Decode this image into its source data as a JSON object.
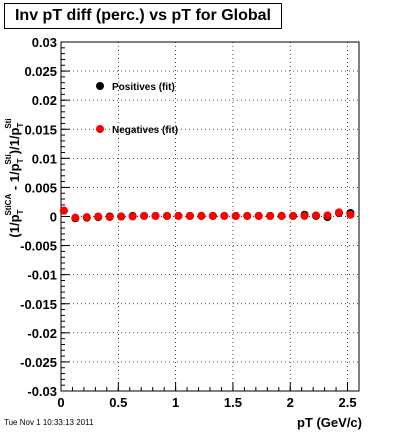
{
  "title": "Inv pT diff (perc.) vs pT for Global",
  "timestamp": "Tue Nov  1 10:33:13 2011",
  "chart_data": {
    "type": "scatter",
    "title": "Inv pT diff (perc.) vs pT for Global",
    "xlabel": "pT (GeV/c)",
    "ylabel": "(1/p_T^StiCA - 1/p_T^Sti)/1/p_T^Sti",
    "ylabel_parts": {
      "open": "(1/p",
      "sub_T": "T",
      "sup1": "StiCA",
      "mid": " - 1/p",
      "sup2": "Sti",
      "close": ")/1/p",
      "sup3": "Sti"
    },
    "xlim": [
      0,
      2.6
    ],
    "ylim": [
      -0.03,
      0.03
    ],
    "x_ticks": [
      "0",
      "0.5",
      "1",
      "1.5",
      "2",
      "2.5"
    ],
    "x_tick_values": [
      0,
      0.5,
      1,
      1.5,
      2,
      2.5
    ],
    "y_ticks": [
      "-0.03",
      "-0.025",
      "-0.02",
      "-0.015",
      "-0.01",
      "-0.005",
      "0",
      "0.005",
      "0.01",
      "0.015",
      "0.02",
      "0.025",
      "0.03"
    ],
    "y_tick_values": [
      -0.03,
      -0.025,
      -0.02,
      -0.015,
      -0.01,
      -0.005,
      0,
      0.005,
      0.01,
      0.015,
      0.02,
      0.025,
      0.03
    ],
    "grid": true,
    "legend_position": "top-left",
    "series": [
      {
        "name": "Positives (fit)",
        "color": "#000000",
        "x": [
          0.025,
          0.125,
          0.225,
          0.325,
          0.425,
          0.525,
          0.625,
          0.725,
          0.825,
          0.925,
          1.025,
          1.125,
          1.225,
          1.325,
          1.425,
          1.525,
          1.625,
          1.725,
          1.825,
          1.925,
          2.025,
          2.125,
          2.225,
          2.325,
          2.425,
          2.525
        ],
        "y": [
          0.001,
          -0.0003,
          -0.0002,
          -0.0001,
          0.0,
          0.0,
          0.0001,
          0.0001,
          0.0001,
          0.0001,
          0.0001,
          0.0001,
          0.0001,
          0.0001,
          0.0001,
          0.0001,
          0.0001,
          0.0001,
          0.0001,
          0.0001,
          0.0001,
          0.0003,
          0.0001,
          -0.0001,
          0.0006,
          0.0006
        ]
      },
      {
        "name": "Negatives (fit)",
        "color": "#ff0000",
        "x": [
          0.025,
          0.125,
          0.225,
          0.325,
          0.425,
          0.525,
          0.625,
          0.725,
          0.825,
          0.925,
          1.025,
          1.125,
          1.225,
          1.325,
          1.425,
          1.525,
          1.625,
          1.725,
          1.825,
          1.925,
          2.025,
          2.125,
          2.225,
          2.325,
          2.425,
          2.525
        ],
        "y": [
          0.001,
          -0.0002,
          -0.0001,
          0.0,
          -0.0001,
          0.0,
          0.0,
          0.0001,
          0.0001,
          0.0001,
          0.0001,
          0.0001,
          0.0001,
          0.0001,
          0.0001,
          0.0001,
          0.0001,
          0.0001,
          0.0001,
          0.0001,
          0.0001,
          0.0001,
          0.0002,
          0.0002,
          0.0007,
          0.0003
        ]
      }
    ]
  }
}
